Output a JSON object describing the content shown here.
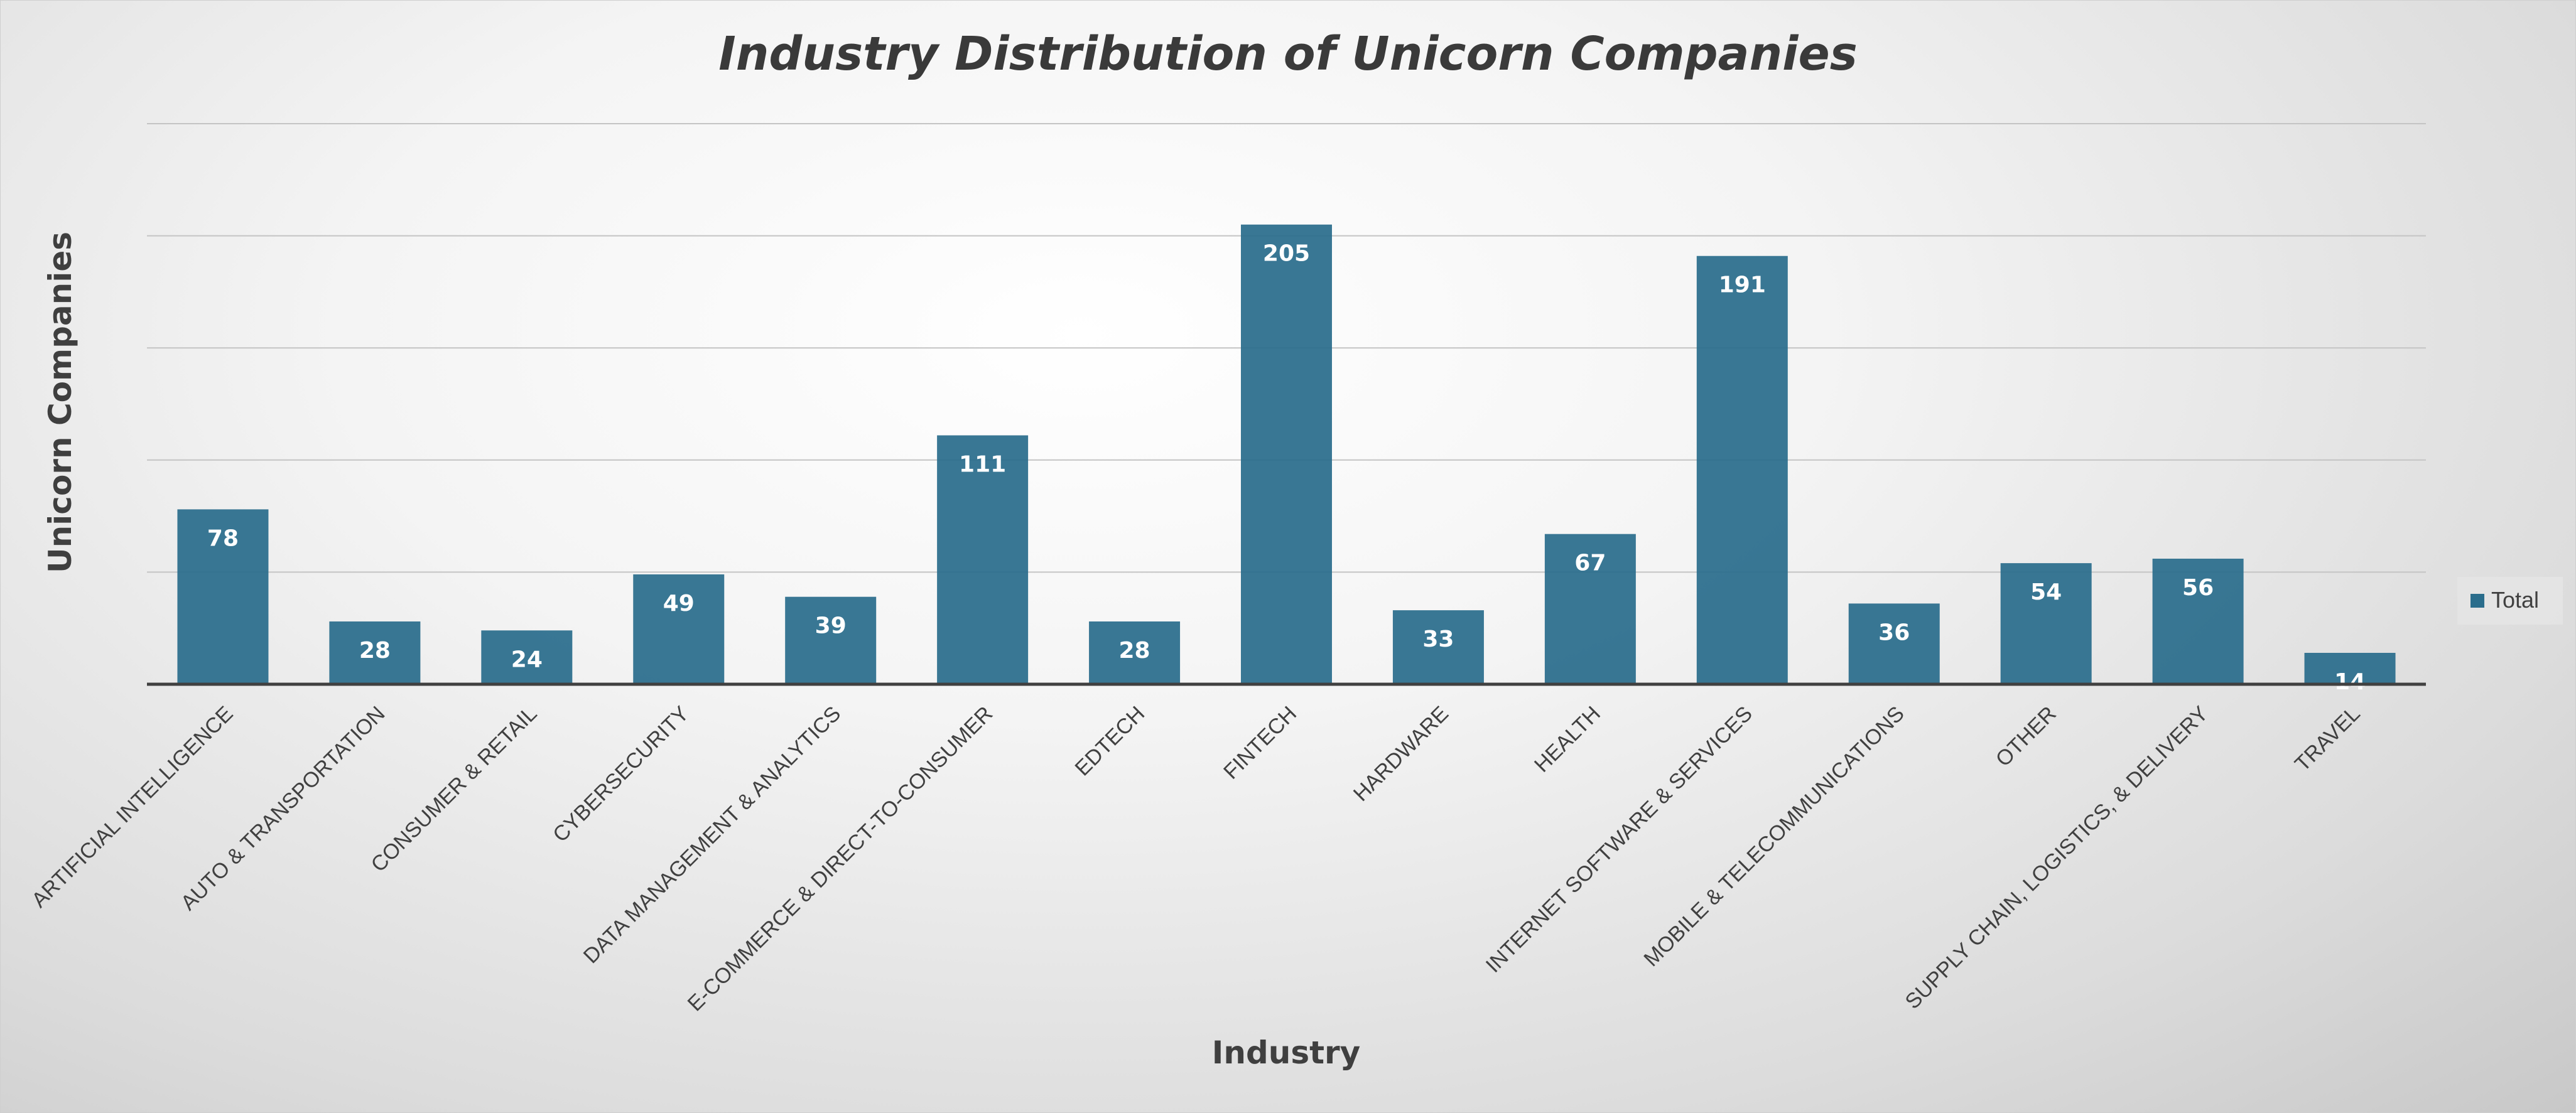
{
  "chart_data": {
    "type": "bar",
    "title": "Industry Distribution of Unicorn Companies",
    "xlabel": "Industry",
    "ylabel": "Unicorn Companies",
    "categories": [
      "ARTIFICIAL INTELLIGENCE",
      "AUTO & TRANSPORTATION",
      "CONSUMER & RETAIL",
      "CYBERSECURITY",
      "DATA MANAGEMENT & ANALYTICS",
      "E-COMMERCE & DIRECT-TO-CONSUMER",
      "EDTECH",
      "FINTECH",
      "HARDWARE",
      "HEALTH",
      "INTERNET SOFTWARE & SERVICES",
      "MOBILE & TELECOMMUNICATIONS",
      "OTHER",
      "SUPPLY CHAIN, LOGISTICS, & DELIVERY",
      "TRAVEL"
    ],
    "series": [
      {
        "name": "Total",
        "values": [
          78,
          28,
          24,
          49,
          39,
          111,
          28,
          205,
          33,
          67,
          191,
          36,
          54,
          56,
          14
        ]
      }
    ],
    "ylim": [
      0,
      250
    ],
    "grid": true,
    "legend": "right",
    "bar_color": "#2a6d8c"
  }
}
